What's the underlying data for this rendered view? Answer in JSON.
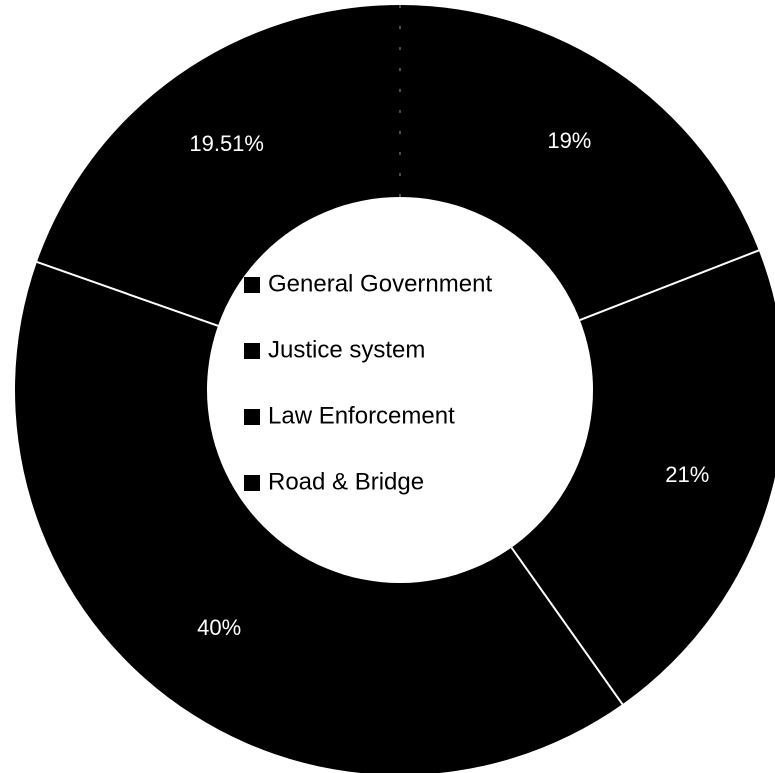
{
  "chart_data": {
    "type": "pie",
    "variant": "donut",
    "title": "",
    "slices": [
      {
        "name": "General Government",
        "value": 19,
        "label": "19%",
        "color": "#000000"
      },
      {
        "name": "Justice system",
        "value": 21,
        "label": "21%",
        "color": "#000000"
      },
      {
        "name": "Law Enforcement",
        "value": 40,
        "label": "40%",
        "color": "#000000"
      },
      {
        "name": "Road & Bridge",
        "value": 19.51,
        "label": "19.51%",
        "color": "#000000"
      }
    ],
    "legend_placement": "center",
    "separator_color": "#ffffff",
    "label_color": "#ffffff"
  }
}
